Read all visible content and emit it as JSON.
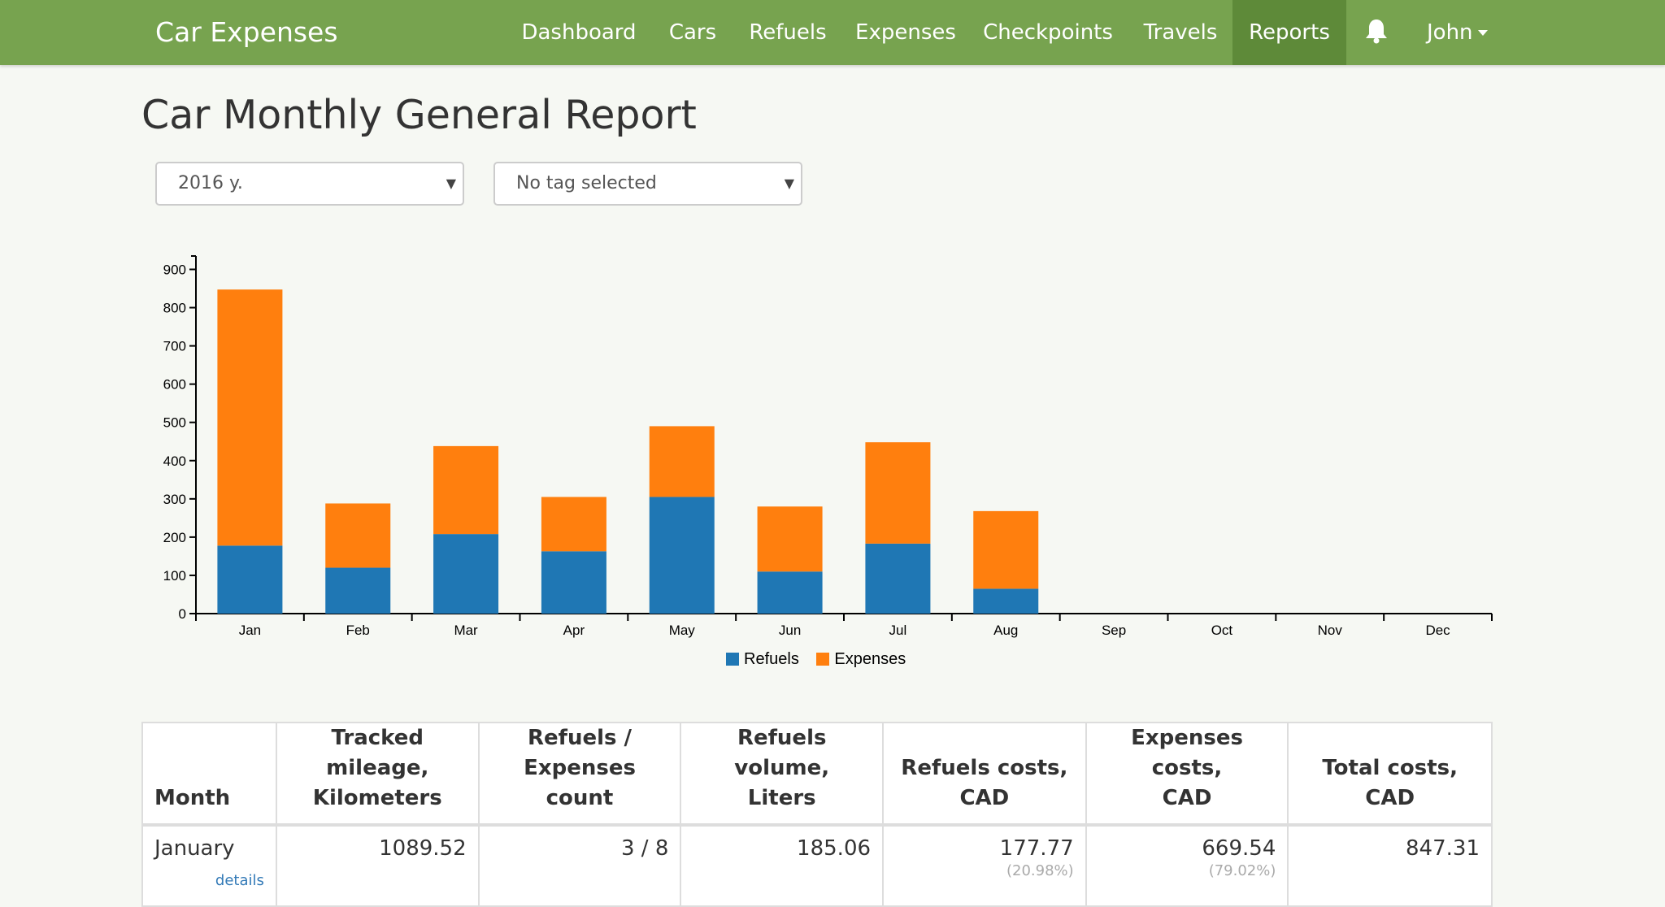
{
  "app": {
    "brand": "Car Expenses",
    "user": "John"
  },
  "nav": {
    "items": [
      {
        "label": "Dashboard"
      },
      {
        "label": "Cars"
      },
      {
        "label": "Refuels"
      },
      {
        "label": "Expenses"
      },
      {
        "label": "Checkpoints"
      },
      {
        "label": "Travels"
      },
      {
        "label": "Reports",
        "active": true
      }
    ],
    "bell_icon": "bell-icon"
  },
  "page": {
    "title": "Car Monthly General Report"
  },
  "filters": {
    "year": {
      "value": "2016 y."
    },
    "tag": {
      "value": "No tag selected"
    }
  },
  "colors": {
    "refuels": "#1f77b4",
    "expenses": "#ff7f0e",
    "navbar": "#77a34f",
    "active_nav": "#5e8a39"
  },
  "chart_data": {
    "type": "bar",
    "stacked": true,
    "categories": [
      "Jan",
      "Feb",
      "Mar",
      "Apr",
      "May",
      "Jun",
      "Jul",
      "Aug",
      "Sep",
      "Oct",
      "Nov",
      "Dec"
    ],
    "series": [
      {
        "name": "Refuels",
        "values": [
          177.77,
          120,
          208,
          163,
          305,
          110,
          183,
          65,
          0,
          0,
          0,
          0
        ]
      },
      {
        "name": "Expenses",
        "values": [
          669.54,
          168,
          230,
          142,
          185,
          170,
          265,
          203,
          0,
          0,
          0,
          0
        ]
      }
    ],
    "yticks": [
      0,
      100,
      200,
      300,
      400,
      500,
      600,
      700,
      800,
      900
    ],
    "ylim": [
      0,
      935
    ],
    "legend": "bottom-center",
    "grid": false
  },
  "table": {
    "headers": [
      {
        "line1": "Month",
        "line2": ""
      },
      {
        "line1": "Tracked mileage,",
        "line2": "Kilometers"
      },
      {
        "line1": "Refuels /",
        "line2": "Expenses count"
      },
      {
        "line1": "Refuels volume,",
        "line2": "Liters"
      },
      {
        "line1": "Refuels costs,",
        "line2": "CAD"
      },
      {
        "line1": "Expenses costs,",
        "line2": "CAD"
      },
      {
        "line1": "Total costs,",
        "line2": "CAD"
      }
    ],
    "rows": [
      {
        "month": "January",
        "details_label": "details",
        "mileage": "1089.52",
        "count": "3 / 8",
        "volume": "185.06",
        "refuel_cost": "177.77",
        "refuel_pct": "(20.98%)",
        "expense_cost": "669.54",
        "expense_pct": "(79.02%)",
        "total": "847.31"
      }
    ]
  }
}
